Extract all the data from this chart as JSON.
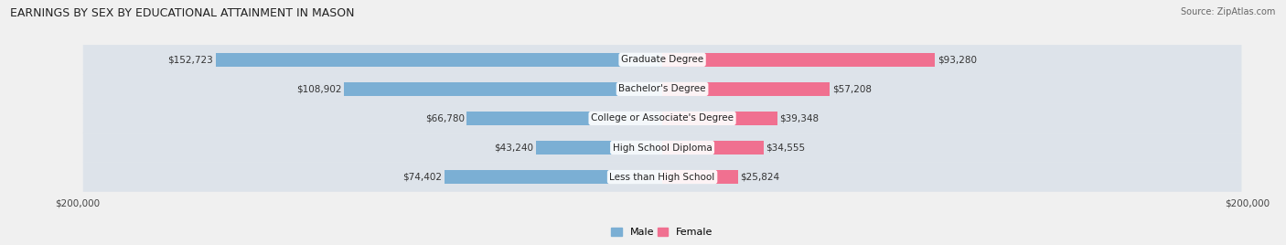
{
  "title": "EARNINGS BY SEX BY EDUCATIONAL ATTAINMENT IN MASON",
  "source": "Source: ZipAtlas.com",
  "categories": [
    "Less than High School",
    "High School Diploma",
    "College or Associate's Degree",
    "Bachelor's Degree",
    "Graduate Degree"
  ],
  "male_values": [
    74402,
    43240,
    66780,
    108902,
    152723
  ],
  "female_values": [
    25824,
    34555,
    39348,
    57208,
    93280
  ],
  "male_color": "#7bafd4",
  "female_color": "#f07090",
  "male_label": "Male",
  "female_label": "Female",
  "axis_limit": 200000,
  "bg_color": "#f0f0f0",
  "row_bg_color": "#dde3ea",
  "title_fontsize": 9,
  "bar_label_fontsize": 7.5,
  "category_fontsize": 7.5,
  "legend_fontsize": 8,
  "axis_label_fontsize": 7.5
}
